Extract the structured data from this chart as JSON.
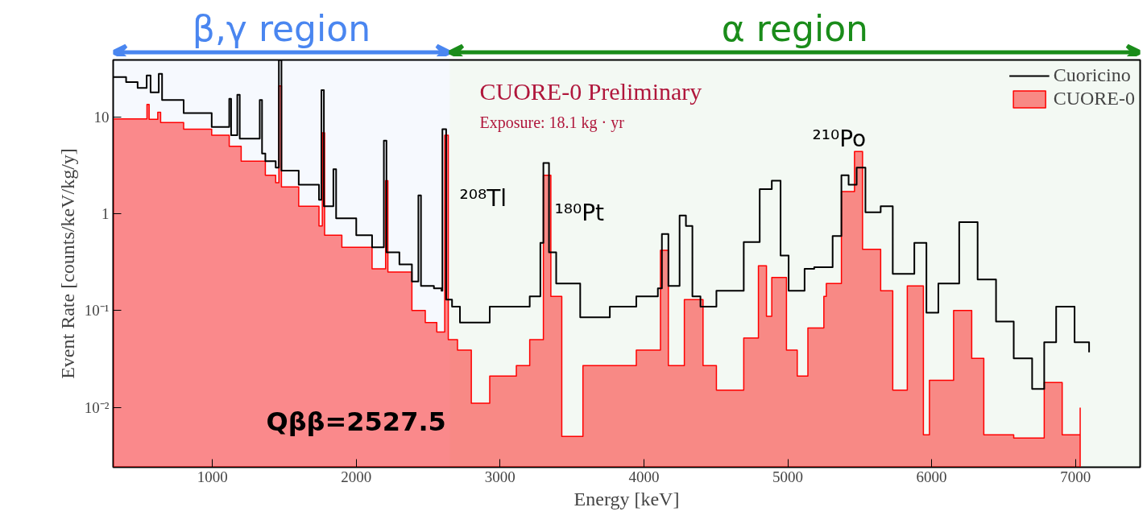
{
  "chart_data": {
    "type": "step",
    "xlabel": "Energy [keV]",
    "ylabel": "Event Rate [counts/keV/kg/y]",
    "log": "y",
    "xlim": [
      310,
      7450
    ],
    "ylim": [
      0.0024,
      39
    ],
    "xticks": [
      1000,
      2000,
      3000,
      4000,
      5000,
      6000,
      7000
    ],
    "yticks": [
      {
        "value": 0.01,
        "label": "10⁻²"
      },
      {
        "value": 0.1,
        "label": "10⁻¹"
      },
      1,
      10
    ],
    "grid": false,
    "legend": "top right",
    "series": [
      {
        "name": "Cuoricino",
        "color": "#000000",
        "x": [
          310,
          400,
          480,
          510,
          543,
          570,
          627,
          650,
          800,
          995,
          1117,
          1130,
          1173,
          1190,
          1329,
          1345,
          1368,
          1440,
          1462,
          1480,
          1600,
          1741,
          1758,
          1775,
          1841,
          1860,
          2000,
          2110,
          2192,
          2210,
          2300,
          2387,
          2432,
          2450,
          2540,
          2593,
          2599,
          2625,
          2666,
          2721,
          2928,
          3206,
          3280,
          3301,
          3340,
          3390,
          3557,
          3763,
          3947,
          4097,
          4125,
          4170,
          4248,
          4292,
          4337,
          4393,
          4504,
          4599,
          4694,
          4805,
          4889,
          4950,
          5006,
          5117,
          5184,
          5312,
          5373,
          5423,
          5479,
          5540,
          5646,
          5730,
          5880,
          5964,
          6047,
          6192,
          6320,
          6448,
          6571,
          6699,
          6783,
          6866,
          6994,
          7095
        ],
        "values": [
          26,
          23,
          20,
          20,
          27,
          18,
          28,
          15,
          11,
          7.9,
          15.5,
          6.5,
          17,
          6,
          15,
          4.2,
          3.5,
          3.0,
          39,
          2.8,
          2.0,
          1.4,
          19,
          1.2,
          2.9,
          0.9,
          0.6,
          0.45,
          5.7,
          0.4,
          0.3,
          0.2,
          1.55,
          0.18,
          0.17,
          0.16,
          7.5,
          0.13,
          0.11,
          0.075,
          0.11,
          0.14,
          0.5,
          3.35,
          0.4,
          0.19,
          0.085,
          0.11,
          0.14,
          0.17,
          0.62,
          0.18,
          0.96,
          0.75,
          0.14,
          0.11,
          0.16,
          0.16,
          0.51,
          1.8,
          2.2,
          0.37,
          0.16,
          0.27,
          0.28,
          0.59,
          2.5,
          2.0,
          3.0,
          1.04,
          1.2,
          0.24,
          0.5,
          0.095,
          0.19,
          0.82,
          0.21,
          0.077,
          0.032,
          0.0155,
          0.047,
          0.11,
          0.047,
          0.037
        ]
      },
      {
        "name": "CUORE-0",
        "type": "area",
        "color": "#ff0000",
        "x": [
          310,
          450,
          545,
          560,
          620,
          640,
          800,
          995,
          1117,
          1200,
          1368,
          1440,
          1462,
          1480,
          1600,
          1741,
          1764,
          1780,
          1900,
          2110,
          2204,
          2220,
          2387,
          2480,
          2560,
          2615,
          2640,
          2704,
          2800,
          2928,
          3113,
          3206,
          3301,
          3353,
          3429,
          3576,
          3763,
          3947,
          4115,
          4170,
          4281,
          4411,
          4504,
          4694,
          4796,
          4852,
          4889,
          4991,
          5066,
          5140,
          5251,
          5268,
          5373,
          5464,
          5520,
          5646,
          5730,
          5831,
          5943,
          5985,
          6153,
          6279,
          6363,
          6448,
          6571,
          6783,
          6908,
          7033
        ],
        "values": [
          9.6,
          9.6,
          13.5,
          9.5,
          11.2,
          8.8,
          7.5,
          6.5,
          5,
          3.5,
          2.5,
          2.1,
          21,
          1.9,
          1.2,
          0.75,
          6.9,
          0.6,
          0.45,
          0.27,
          2.2,
          0.25,
          0.1,
          0.075,
          0.06,
          6.5,
          0.05,
          0.039,
          0.011,
          0.021,
          0.027,
          0.05,
          2.5,
          0.14,
          0.005,
          0.027,
          0.027,
          0.039,
          0.42,
          0.027,
          0.13,
          0.027,
          0.015,
          0.052,
          0.29,
          0.087,
          0.22,
          0.039,
          0.021,
          0.066,
          0.14,
          0.19,
          1.7,
          4.4,
          0.43,
          0.16,
          0.015,
          0.18,
          0.0052,
          0.019,
          0.1,
          0.032,
          0.0052,
          0.0052,
          0.0048,
          0.018,
          0.0052,
          0.0098
        ]
      }
    ],
    "bands": [
      {
        "axis": "x",
        "from": 310,
        "to": 2650,
        "label": "β,γ region",
        "color": "#4a86f0"
      },
      {
        "axis": "x",
        "from": 2650,
        "to": 7450,
        "label": "α region",
        "color": "#1a8c1a"
      }
    ],
    "annotations": [
      "CUORE-0 Preliminary",
      "Exposure: 18.1 kg ·  yr",
      "²⁰⁸Tl",
      "¹⁸⁰Pt",
      "²¹⁰Po",
      "Qββ=2527.5"
    ]
  }
}
